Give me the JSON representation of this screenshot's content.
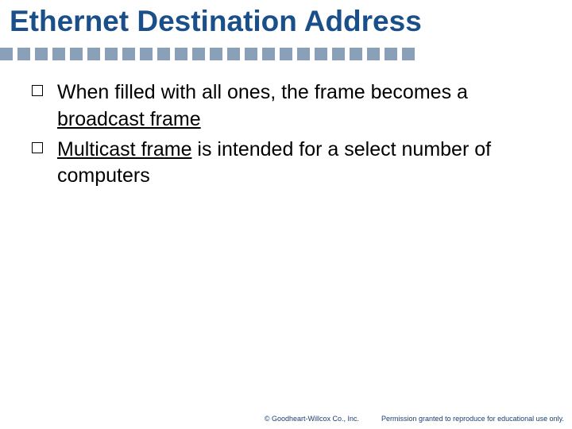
{
  "title": {
    "text": "Ethernet Destination Address",
    "color": "#1a4f8a",
    "fontsize": 37
  },
  "separator": {
    "count": 24,
    "square_size": 16,
    "gap": 6,
    "color": "#8aa0b8"
  },
  "bullets": [
    {
      "parts": [
        {
          "text": "When filled with all ones, the frame becomes a ",
          "underline": false
        },
        {
          "text": "broadcast frame",
          "underline": true
        }
      ]
    },
    {
      "parts": [
        {
          "text": "Multicast frame",
          "underline": true
        },
        {
          "text": " is intended for a select number of computers",
          "underline": false
        }
      ]
    }
  ],
  "body_fontsize": 25,
  "body_color": "#000000",
  "footer": {
    "copyright": "© Goodheart-Willcox Co., Inc.",
    "permission": "Permission granted to reproduce for educational use only.",
    "fontsize": 9,
    "color": "#1a3e6f"
  },
  "background": "#ffffff"
}
